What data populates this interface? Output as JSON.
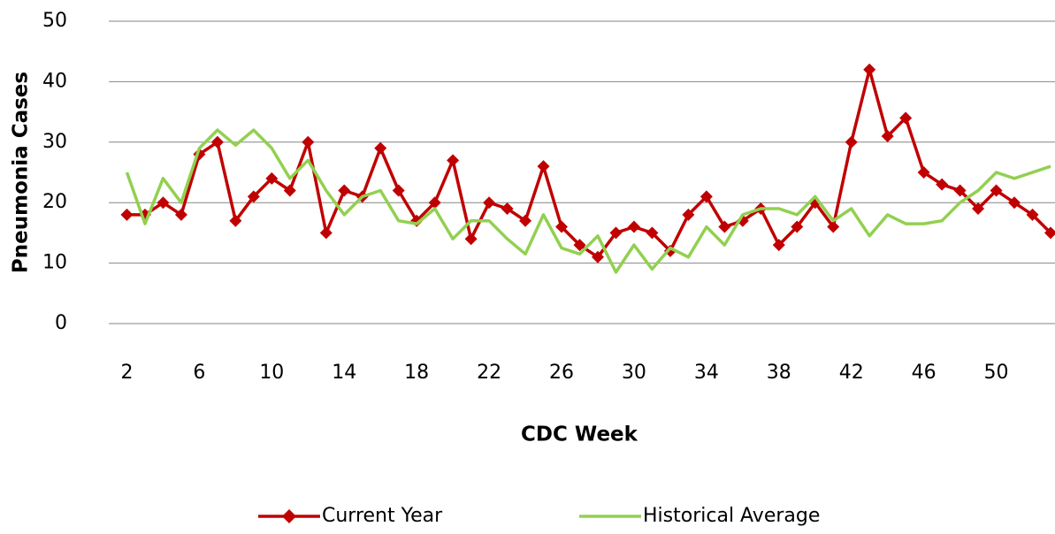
{
  "chart_data": {
    "type": "line",
    "x_label": "CDC Week",
    "y_label": "Pneumonia Cases",
    "x": [
      2,
      3,
      4,
      5,
      6,
      7,
      8,
      9,
      10,
      11,
      12,
      13,
      14,
      15,
      16,
      17,
      18,
      19,
      20,
      21,
      22,
      23,
      24,
      25,
      26,
      27,
      28,
      29,
      30,
      31,
      32,
      33,
      34,
      35,
      36,
      37,
      38,
      39,
      40,
      41,
      42,
      43,
      44,
      45,
      46,
      47,
      48,
      49,
      50,
      51,
      52,
      53
    ],
    "series": [
      {
        "name": "Current Year",
        "color": "#c00000",
        "marker": "diamond",
        "values": [
          18,
          18,
          20,
          18,
          28,
          30,
          17,
          21,
          24,
          22,
          30,
          15,
          22,
          21,
          29,
          22,
          17,
          20,
          27,
          14,
          20,
          19,
          17,
          26,
          16,
          13,
          11,
          15,
          16,
          15,
          12,
          18,
          21,
          16,
          17,
          19,
          13,
          16,
          20,
          16,
          30,
          42,
          31,
          34,
          25,
          23,
          22,
          19,
          22,
          20,
          18,
          15
        ]
      },
      {
        "name": "Historical Average",
        "color": "#92d050",
        "values": [
          25,
          16.5,
          24,
          20,
          29,
          32,
          29.5,
          32,
          29,
          24,
          27,
          22,
          18,
          21,
          22,
          17,
          16.5,
          19,
          14,
          17,
          17,
          14,
          11.5,
          18,
          12.5,
          11.5,
          14.5,
          8.5,
          13,
          9,
          12.5,
          11,
          16,
          13,
          18,
          19,
          19,
          18,
          21,
          17,
          19,
          14.5,
          18,
          16.5,
          16.5,
          17,
          20,
          22,
          25,
          24,
          25,
          26
        ]
      }
    ],
    "xlim": [
      1,
      53
    ],
    "xticks": [
      2,
      6,
      10,
      14,
      18,
      22,
      26,
      30,
      34,
      38,
      42,
      46,
      50
    ],
    "ylim": [
      0,
      50
    ],
    "yticks": [
      0,
      10,
      20,
      30,
      40,
      50
    ],
    "grid": true,
    "legend": "bottom"
  }
}
